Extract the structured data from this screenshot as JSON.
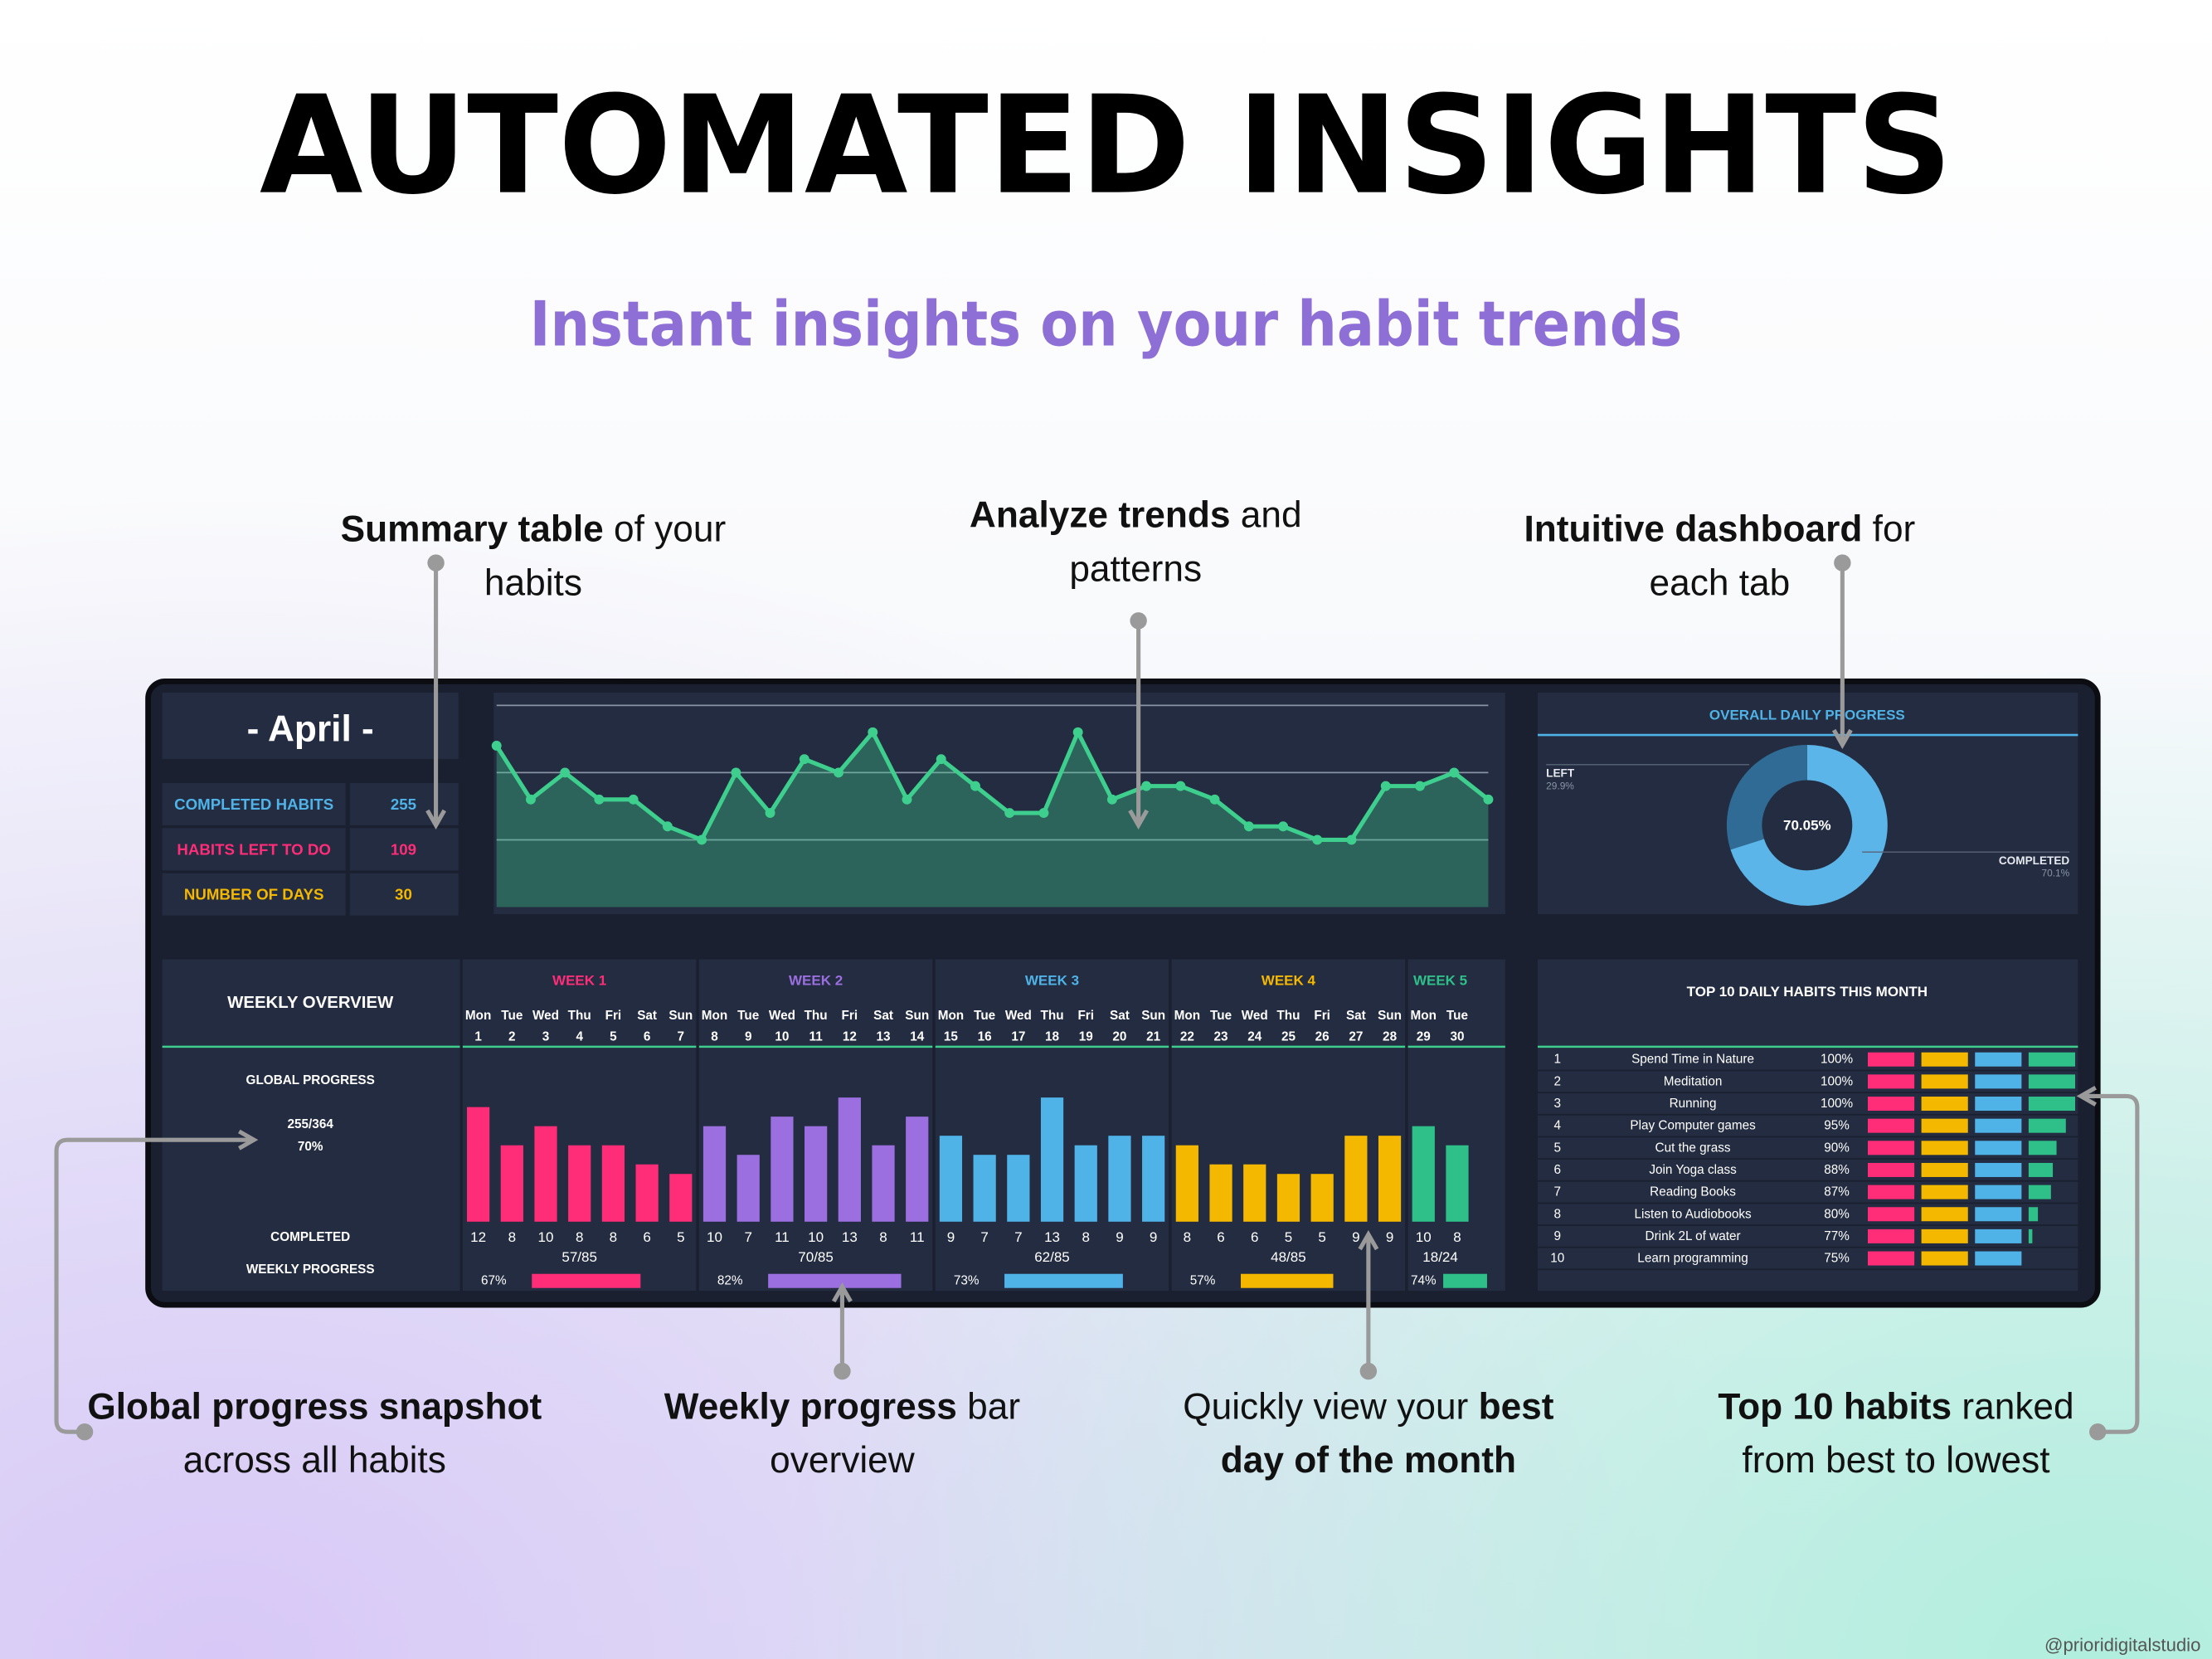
{
  "header": {
    "title": "AUTOMATED INSIGHTS",
    "subtitle": "Instant insights on your habit trends"
  },
  "callouts": [
    {
      "lines": [
        [
          {
            "text": "Summary table",
            "bold": true
          },
          {
            "text": " of your"
          }
        ],
        [
          {
            "text": "habits"
          }
        ]
      ]
    },
    {
      "lines": [
        [
          {
            "text": "Analyze trends",
            "bold": true
          },
          {
            "text": " and"
          }
        ],
        [
          {
            "text": "patterns"
          }
        ]
      ]
    },
    {
      "lines": [
        [
          {
            "text": "Intuitive dashboard",
            "bold": true
          },
          {
            "text": " for"
          }
        ],
        [
          {
            "text": "each tab"
          }
        ]
      ]
    },
    {
      "lines": [
        [
          {
            "text": "Global progress snapshot",
            "bold": true
          }
        ],
        [
          {
            "text": "across all habits"
          }
        ]
      ]
    },
    {
      "lines": [
        [
          {
            "text": "Weekly progress",
            "bold": true
          },
          {
            "text": " bar"
          }
        ],
        [
          {
            "text": "overview"
          }
        ]
      ]
    },
    {
      "lines": [
        [
          {
            "text": "Quickly view your "
          },
          {
            "text": "best",
            "bold": true
          }
        ],
        [
          {
            "text": "day of the month",
            "bold": true
          }
        ]
      ]
    },
    {
      "lines": [
        [
          {
            "text": "Top 10 habits",
            "bold": true
          },
          {
            "text": " ranked"
          }
        ],
        [
          {
            "text": "from best to lowest"
          }
        ]
      ]
    }
  ],
  "dashboard": {
    "month": "- April -",
    "summary": [
      {
        "label": "COMPLETED HABITS",
        "value": 255,
        "color": "#4fb3e8"
      },
      {
        "label": "HABITS LEFT TO DO",
        "value": 109,
        "color": "#ff2d78"
      },
      {
        "label": "NUMBER OF DAYS",
        "value": 30,
        "color": "#f5b800"
      }
    ],
    "trend": {
      "ylim": [
        0,
        15
      ],
      "yticks": [
        5,
        10,
        15
      ],
      "color": "#3ecf8e"
    },
    "donut": {
      "title": "OVERALL DAILY PROGRESS",
      "center_label": "70.05%",
      "segments": [
        {
          "name": "COMPLETED",
          "value": 70.1,
          "label": "70.1%",
          "color": "#5bb5e8"
        },
        {
          "name": "LEFT",
          "value": 29.9,
          "label": "29.9%",
          "color": "#2f6b94"
        }
      ]
    },
    "overview": {
      "title": "WEEKLY OVERVIEW",
      "global_title": "GLOBAL PROGRESS",
      "global_ratio": "255/364",
      "global_percent": "70%",
      "completed_label": "COMPLETED",
      "progress_title": "WEEKLY PROGRESS"
    },
    "weeks": [
      {
        "name": "WEEK 1",
        "color": "#ff2d78",
        "days": [
          {
            "weekday": "Mon",
            "date": 1,
            "completed": 12
          },
          {
            "weekday": "Tue",
            "date": 2,
            "completed": 8
          },
          {
            "weekday": "Wed",
            "date": 3,
            "completed": 10
          },
          {
            "weekday": "Thu",
            "date": 4,
            "completed": 8
          },
          {
            "weekday": "Fri",
            "date": 5,
            "completed": 8
          },
          {
            "weekday": "Sat",
            "date": 6,
            "completed": 6
          },
          {
            "weekday": "Sun",
            "date": 7,
            "completed": 5
          }
        ],
        "ratio": "57/85",
        "progress": 67,
        "progress_label": "67%"
      },
      {
        "name": "WEEK 2",
        "color": "#9b6fe0",
        "days": [
          {
            "weekday": "Mon",
            "date": 8,
            "completed": 10
          },
          {
            "weekday": "Tue",
            "date": 9,
            "completed": 7
          },
          {
            "weekday": "Wed",
            "date": 10,
            "completed": 11
          },
          {
            "weekday": "Thu",
            "date": 11,
            "completed": 10
          },
          {
            "weekday": "Fri",
            "date": 12,
            "completed": 13
          },
          {
            "weekday": "Sat",
            "date": 13,
            "completed": 8
          },
          {
            "weekday": "Sun",
            "date": 14,
            "completed": 11
          }
        ],
        "ratio": "70/85",
        "progress": 82,
        "progress_label": "82%"
      },
      {
        "name": "WEEK 3",
        "color": "#4fb3e8",
        "days": [
          {
            "weekday": "Mon",
            "date": 15,
            "completed": 9
          },
          {
            "weekday": "Tue",
            "date": 16,
            "completed": 7
          },
          {
            "weekday": "Wed",
            "date": 17,
            "completed": 7
          },
          {
            "weekday": "Thu",
            "date": 18,
            "completed": 13
          },
          {
            "weekday": "Fri",
            "date": 19,
            "completed": 8
          },
          {
            "weekday": "Sat",
            "date": 20,
            "completed": 9
          },
          {
            "weekday": "Sun",
            "date": 21,
            "completed": 9
          }
        ],
        "ratio": "62/85",
        "progress": 73,
        "progress_label": "73%"
      },
      {
        "name": "WEEK 4",
        "color": "#f5b800",
        "days": [
          {
            "weekday": "Mon",
            "date": 22,
            "completed": 8
          },
          {
            "weekday": "Tue",
            "date": 23,
            "completed": 6
          },
          {
            "weekday": "Wed",
            "date": 24,
            "completed": 6
          },
          {
            "weekday": "Thu",
            "date": 25,
            "completed": 5
          },
          {
            "weekday": "Fri",
            "date": 26,
            "completed": 5
          },
          {
            "weekday": "Sat",
            "date": 27,
            "completed": 9
          },
          {
            "weekday": "Sun",
            "date": 28,
            "completed": 9
          }
        ],
        "ratio": "48/85",
        "progress": 57,
        "progress_label": "57%"
      },
      {
        "name": "WEEK 5",
        "color": "#2fc08a",
        "days": [
          {
            "weekday": "Mon",
            "date": 29,
            "completed": 10
          },
          {
            "weekday": "Tue",
            "date": 30,
            "completed": 8
          }
        ],
        "ratio": "18/24",
        "progress": 74,
        "progress_label": "74%"
      }
    ],
    "top10": {
      "title": "TOP 10 DAILY HABITS THIS MONTH",
      "bar_colors": [
        "#ff2d78",
        "#f5b800",
        "#4fb3e8",
        "#2fc08a"
      ],
      "rows": [
        {
          "rank": 1,
          "name": "Spend Time in Nature",
          "percent": 100,
          "label": "100%"
        },
        {
          "rank": 2,
          "name": "Meditation",
          "percent": 100,
          "label": "100%"
        },
        {
          "rank": 3,
          "name": "Running",
          "percent": 100,
          "label": "100%"
        },
        {
          "rank": 4,
          "name": "Play Computer games",
          "percent": 95,
          "label": "95%"
        },
        {
          "rank": 5,
          "name": "Cut the grass",
          "percent": 90,
          "label": "90%"
        },
        {
          "rank": 6,
          "name": "Join Yoga class",
          "percent": 88,
          "label": "88%"
        },
        {
          "rank": 7,
          "name": "Reading Books",
          "percent": 87,
          "label": "87%"
        },
        {
          "rank": 8,
          "name": "Listen to Audiobooks",
          "percent": 80,
          "label": "80%"
        },
        {
          "rank": 9,
          "name": "Drink 2L of water",
          "percent": 77,
          "label": "77%"
        },
        {
          "rank": 10,
          "name": "Learn programming",
          "percent": 75,
          "label": "75%"
        }
      ]
    }
  },
  "footer": {
    "handle": "@prioridigitalstudio"
  }
}
